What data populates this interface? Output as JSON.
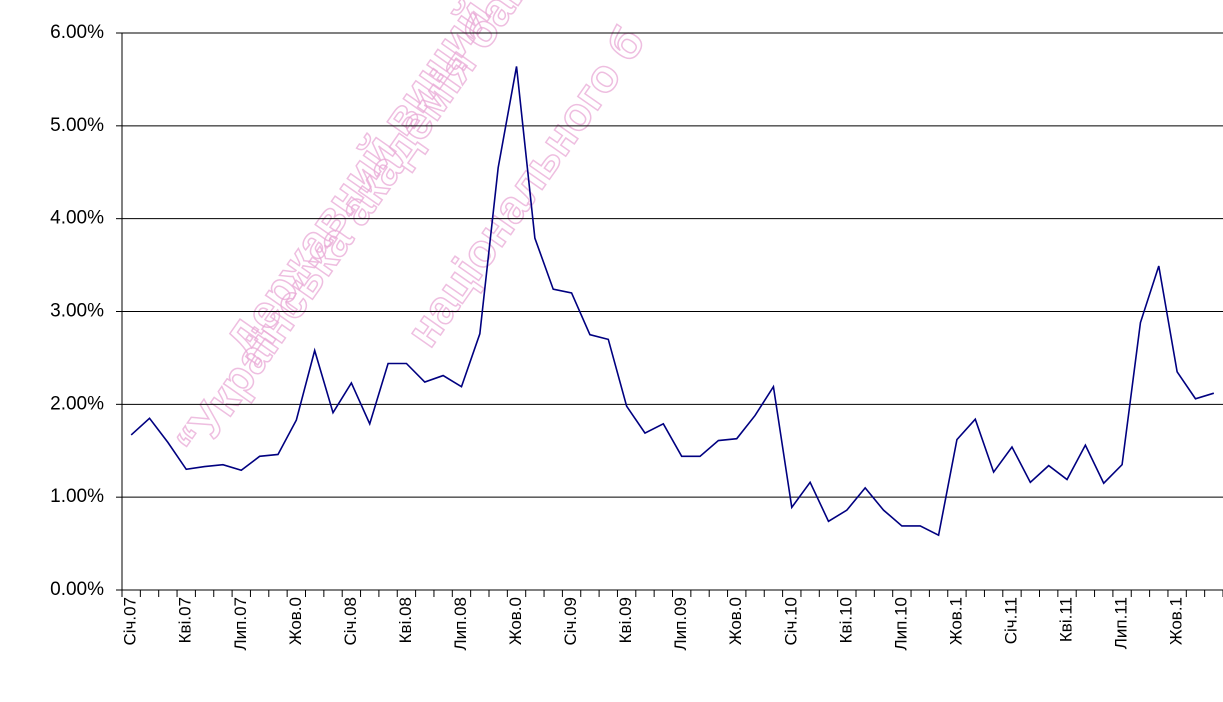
{
  "chart_data": {
    "type": "line",
    "categories": [
      "Січ.07",
      null,
      null,
      "Кві.07",
      null,
      null,
      "Лип.07",
      null,
      null,
      "Жов.0",
      null,
      null,
      "Січ.08",
      null,
      null,
      "Кві.08",
      null,
      null,
      "Лип.08",
      null,
      null,
      "Жов.0",
      null,
      null,
      "Січ.09",
      null,
      null,
      "Кві.09",
      null,
      null,
      "Лип.09",
      null,
      null,
      "Жов.0",
      null,
      null,
      "Січ.10",
      null,
      null,
      "Кві.10",
      null,
      null,
      "Лип.10",
      null,
      null,
      "Жов.1",
      null,
      null,
      "Січ.11",
      null,
      null,
      "Кві.11",
      null,
      null,
      "Лип.11",
      null,
      null,
      "Жов.1",
      null,
      null
    ],
    "series": [
      {
        "color": "#000080",
        "values": [
          1.67,
          1.85,
          1.59,
          1.3,
          1.33,
          1.35,
          1.29,
          1.44,
          1.46,
          1.83,
          2.58,
          1.91,
          2.23,
          1.79,
          2.44,
          2.44,
          2.24,
          2.31,
          2.19,
          2.76,
          4.55,
          5.64,
          3.79,
          3.24,
          3.2,
          2.75,
          2.7,
          1.98,
          1.69,
          1.79,
          1.44,
          1.44,
          1.61,
          1.63,
          1.88,
          2.19,
          0.89,
          1.16,
          0.74,
          0.86,
          1.1,
          0.86,
          0.69,
          0.69,
          0.59,
          1.62,
          1.84,
          1.27,
          1.54,
          1.16,
          1.34,
          1.19,
          1.56,
          1.15,
          1.35,
          2.88,
          3.49,
          2.35,
          2.06,
          2.12
        ]
      }
    ],
    "ylim": [
      0,
      6
    ],
    "yticks": [
      {
        "value": 0,
        "label": "0.00%"
      },
      {
        "value": 1,
        "label": "1.00%"
      },
      {
        "value": 2,
        "label": "2.00%"
      },
      {
        "value": 3,
        "label": "3.00%"
      },
      {
        "value": 4,
        "label": "4.00%"
      },
      {
        "value": 5,
        "label": "5.00%"
      },
      {
        "value": 6,
        "label": "6.00%"
      }
    ],
    "grid": true
  },
  "watermark": [
    "Державний вищий",
    "“Українська академія бан",
    "національного б"
  ]
}
